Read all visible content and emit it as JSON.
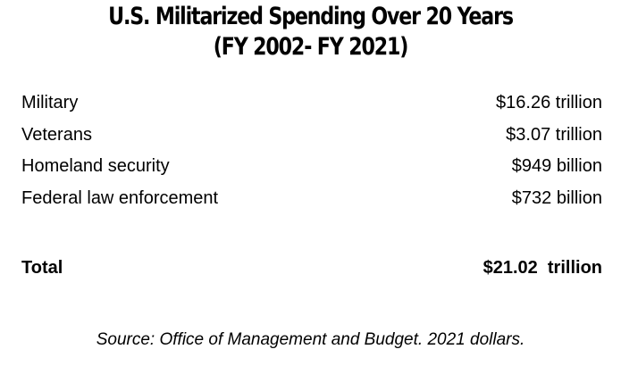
{
  "title": {
    "line1": "U.S. Militarized Spending Over 20 Years",
    "line2": "(FY 2002- FY 2021)"
  },
  "rows": [
    {
      "label": "Military",
      "value": "$16.26 trillion"
    },
    {
      "label": "Veterans",
      "value": "$3.07 trillion"
    },
    {
      "label": "Homeland security",
      "value": "$949 billion"
    },
    {
      "label": "Federal law enforcement",
      "value": "$732 billion"
    }
  ],
  "total": {
    "label": "Total",
    "value": "$21.02  trillion"
  },
  "source": "Source: Office of Management and Budget. 2021 dollars."
}
